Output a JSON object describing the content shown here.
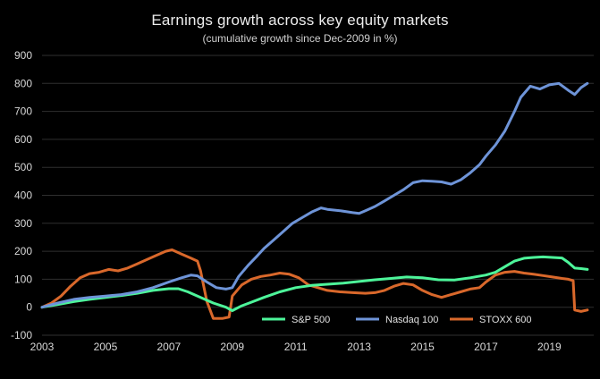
{
  "chart_data": {
    "type": "line",
    "title": "Earnings growth across key equity markets",
    "subtitle": "(cumulative growth since Dec-2009 in %)",
    "xlabel": "",
    "ylabel": "",
    "xlim": [
      2003,
      2020.4
    ],
    "ylim": [
      -100,
      900
    ],
    "x_ticks": [
      2003,
      2005,
      2007,
      2009,
      2011,
      2013,
      2015,
      2017,
      2019
    ],
    "y_ticks": [
      -100,
      0,
      100,
      200,
      300,
      400,
      500,
      600,
      700,
      800,
      900
    ],
    "grid": "horizontal",
    "legend_position": "bottom-right",
    "series": [
      {
        "name": "S&P 500",
        "color": "#4df59a",
        "points": [
          [
            2003.0,
            0
          ],
          [
            2003.5,
            10
          ],
          [
            2004.0,
            20
          ],
          [
            2004.5,
            28
          ],
          [
            2005.0,
            35
          ],
          [
            2005.5,
            42
          ],
          [
            2006.0,
            50
          ],
          [
            2006.5,
            60
          ],
          [
            2007.0,
            66
          ],
          [
            2007.3,
            66
          ],
          [
            2007.6,
            55
          ],
          [
            2008.0,
            35
          ],
          [
            2008.4,
            15
          ],
          [
            2008.8,
            0
          ],
          [
            2009.0,
            -12
          ],
          [
            2009.3,
            5
          ],
          [
            2009.6,
            18
          ],
          [
            2010.0,
            35
          ],
          [
            2010.5,
            55
          ],
          [
            2011.0,
            70
          ],
          [
            2011.5,
            78
          ],
          [
            2012.0,
            82
          ],
          [
            2012.5,
            86
          ],
          [
            2013.0,
            92
          ],
          [
            2013.5,
            98
          ],
          [
            2014.0,
            103
          ],
          [
            2014.5,
            108
          ],
          [
            2015.0,
            105
          ],
          [
            2015.5,
            98
          ],
          [
            2016.0,
            97
          ],
          [
            2016.5,
            105
          ],
          [
            2017.0,
            115
          ],
          [
            2017.3,
            125
          ],
          [
            2017.6,
            145
          ],
          [
            2017.9,
            165
          ],
          [
            2018.2,
            175
          ],
          [
            2018.5,
            178
          ],
          [
            2018.8,
            180
          ],
          [
            2019.1,
            178
          ],
          [
            2019.4,
            176
          ],
          [
            2019.6,
            160
          ],
          [
            2019.8,
            140
          ],
          [
            2020.0,
            138
          ],
          [
            2020.2,
            135
          ]
        ]
      },
      {
        "name": "Nasdaq 100",
        "color": "#6e94d8",
        "points": [
          [
            2003.0,
            0
          ],
          [
            2003.5,
            15
          ],
          [
            2004.0,
            28
          ],
          [
            2004.5,
            35
          ],
          [
            2005.0,
            40
          ],
          [
            2005.5,
            45
          ],
          [
            2006.0,
            55
          ],
          [
            2006.5,
            70
          ],
          [
            2007.0,
            90
          ],
          [
            2007.4,
            105
          ],
          [
            2007.7,
            115
          ],
          [
            2007.9,
            112
          ],
          [
            2008.2,
            90
          ],
          [
            2008.5,
            70
          ],
          [
            2008.8,
            65
          ],
          [
            2009.0,
            70
          ],
          [
            2009.2,
            110
          ],
          [
            2009.5,
            150
          ],
          [
            2009.8,
            185
          ],
          [
            2010.0,
            210
          ],
          [
            2010.3,
            240
          ],
          [
            2010.6,
            270
          ],
          [
            2010.9,
            300
          ],
          [
            2011.2,
            320
          ],
          [
            2011.5,
            340
          ],
          [
            2011.8,
            355
          ],
          [
            2012.0,
            350
          ],
          [
            2012.4,
            345
          ],
          [
            2012.8,
            338
          ],
          [
            2013.0,
            335
          ],
          [
            2013.2,
            345
          ],
          [
            2013.5,
            360
          ],
          [
            2013.8,
            380
          ],
          [
            2014.1,
            400
          ],
          [
            2014.4,
            420
          ],
          [
            2014.7,
            445
          ],
          [
            2015.0,
            452
          ],
          [
            2015.3,
            450
          ],
          [
            2015.6,
            448
          ],
          [
            2015.9,
            440
          ],
          [
            2016.2,
            455
          ],
          [
            2016.5,
            480
          ],
          [
            2016.8,
            510
          ],
          [
            2017.0,
            540
          ],
          [
            2017.3,
            580
          ],
          [
            2017.6,
            630
          ],
          [
            2017.9,
            700
          ],
          [
            2018.1,
            750
          ],
          [
            2018.4,
            790
          ],
          [
            2018.7,
            780
          ],
          [
            2019.0,
            795
          ],
          [
            2019.3,
            800
          ],
          [
            2019.6,
            775
          ],
          [
            2019.8,
            760
          ],
          [
            2020.0,
            785
          ],
          [
            2020.2,
            800
          ]
        ]
      },
      {
        "name": "STOXX 600",
        "color": "#d9682b",
        "points": [
          [
            2003.0,
            0
          ],
          [
            2003.3,
            15
          ],
          [
            2003.6,
            40
          ],
          [
            2003.9,
            75
          ],
          [
            2004.2,
            105
          ],
          [
            2004.5,
            120
          ],
          [
            2004.8,
            125
          ],
          [
            2005.1,
            135
          ],
          [
            2005.4,
            130
          ],
          [
            2005.7,
            140
          ],
          [
            2006.0,
            155
          ],
          [
            2006.3,
            170
          ],
          [
            2006.6,
            185
          ],
          [
            2006.9,
            200
          ],
          [
            2007.1,
            205
          ],
          [
            2007.4,
            190
          ],
          [
            2007.7,
            175
          ],
          [
            2007.9,
            165
          ],
          [
            2008.0,
            130
          ],
          [
            2008.2,
            20
          ],
          [
            2008.4,
            -40
          ],
          [
            2008.7,
            -40
          ],
          [
            2008.9,
            -35
          ],
          [
            2009.0,
            40
          ],
          [
            2009.3,
            80
          ],
          [
            2009.6,
            100
          ],
          [
            2009.9,
            110
          ],
          [
            2010.2,
            115
          ],
          [
            2010.5,
            122
          ],
          [
            2010.8,
            118
          ],
          [
            2011.1,
            105
          ],
          [
            2011.4,
            80
          ],
          [
            2011.7,
            70
          ],
          [
            2012.0,
            60
          ],
          [
            2012.4,
            55
          ],
          [
            2012.8,
            52
          ],
          [
            2013.2,
            50
          ],
          [
            2013.5,
            52
          ],
          [
            2013.8,
            60
          ],
          [
            2014.1,
            75
          ],
          [
            2014.4,
            85
          ],
          [
            2014.7,
            80
          ],
          [
            2015.0,
            60
          ],
          [
            2015.3,
            45
          ],
          [
            2015.6,
            35
          ],
          [
            2015.9,
            45
          ],
          [
            2016.2,
            55
          ],
          [
            2016.5,
            65
          ],
          [
            2016.8,
            70
          ],
          [
            2017.0,
            90
          ],
          [
            2017.3,
            115
          ],
          [
            2017.6,
            125
          ],
          [
            2017.9,
            128
          ],
          [
            2018.2,
            122
          ],
          [
            2018.5,
            118
          ],
          [
            2018.8,
            113
          ],
          [
            2019.1,
            108
          ],
          [
            2019.4,
            103
          ],
          [
            2019.6,
            100
          ],
          [
            2019.75,
            95
          ],
          [
            2019.8,
            -10
          ],
          [
            2020.0,
            -15
          ],
          [
            2020.2,
            -10
          ]
        ]
      }
    ]
  }
}
